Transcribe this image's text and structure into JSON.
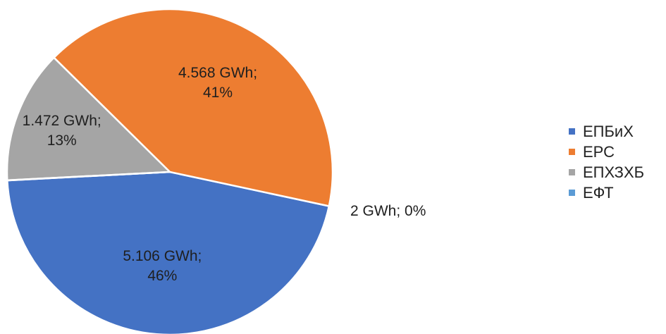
{
  "chart_data": {
    "type": "pie",
    "slices": [
      {
        "name": "ЕПБиХ",
        "value_gwh": 5106,
        "value_label": "5.106 GWh;",
        "percent_label": "46%",
        "color": "#4472C4"
      },
      {
        "name": "ЕРС",
        "value_gwh": 4568,
        "value_label": "4.568 GWh;",
        "percent_label": "41%",
        "color": "#ED7D31"
      },
      {
        "name": "ЕПХЗХБ",
        "value_gwh": 1472,
        "value_label": "1.472 GWh;",
        "percent_label": "13%",
        "color": "#A5A5A5"
      },
      {
        "name": "ЕФТ",
        "value_gwh": 2,
        "value_label": "2 GWh; 0%",
        "percent_label": "0%",
        "color": "#5B9BD5"
      }
    ],
    "legend_position": "right"
  }
}
